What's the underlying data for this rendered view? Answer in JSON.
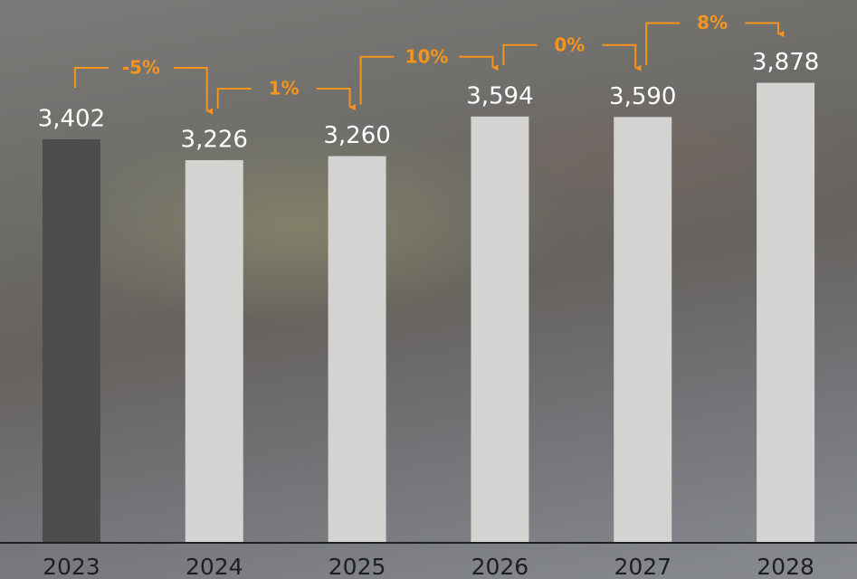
{
  "chart_data": {
    "type": "bar",
    "categories": [
      "2023",
      "2024",
      "2025",
      "2026",
      "2027",
      "2028"
    ],
    "values": [
      3402,
      3226,
      3260,
      3594,
      3590,
      3878
    ],
    "value_labels": [
      "3,402",
      "3,226",
      "3,260",
      "3,594",
      "3,590",
      "3,878"
    ],
    "colors": [
      "#4d4d4d",
      "#d3d3d1",
      "#d3d3d1",
      "#d3d3d1",
      "#d3d3d1",
      "#d3d3d1"
    ],
    "change_labels": [
      "-5%",
      "1%",
      "10%",
      "0%",
      "8%"
    ],
    "annotation_color": "#f7941d",
    "ylim": [
      0,
      4500
    ]
  }
}
